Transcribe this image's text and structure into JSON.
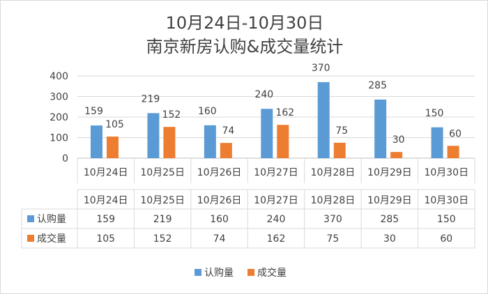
{
  "chart_data": {
    "type": "bar",
    "title_lines": [
      "10月24日-10月30日",
      "南京新房认购&成交量统计"
    ],
    "categories": [
      "10月24日",
      "10月25日",
      "10月26日",
      "10月27日",
      "10月28日",
      "10月29日",
      "10月30日"
    ],
    "series": [
      {
        "name": "认购量",
        "color": "#5b9bd5",
        "values": [
          159,
          219,
          160,
          240,
          370,
          285,
          150
        ]
      },
      {
        "name": "成交量",
        "color": "#ed7d31",
        "values": [
          105,
          152,
          74,
          162,
          75,
          30,
          60
        ]
      }
    ],
    "ylim": [
      0,
      400
    ],
    "yticks": [
      0,
      100,
      200,
      300,
      400
    ],
    "data_table": true,
    "legend_position": "bottom"
  }
}
